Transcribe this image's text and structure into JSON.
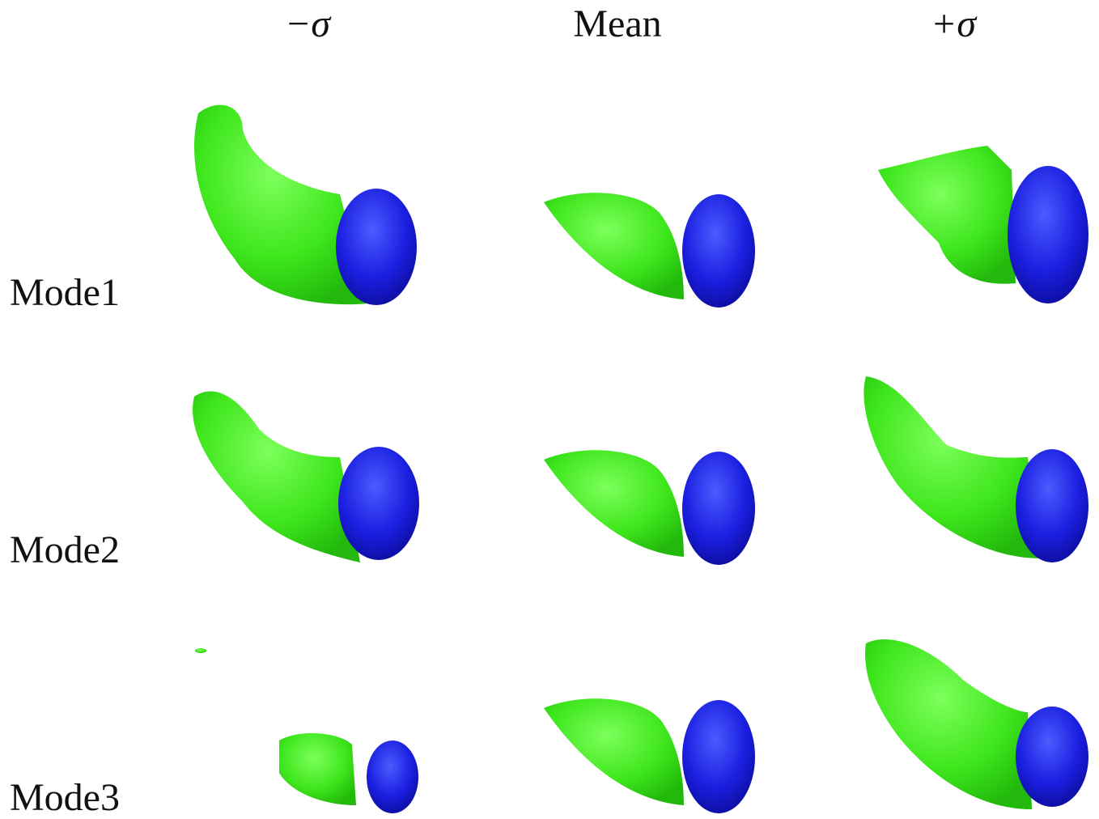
{
  "columns": [
    "−σ",
    "Mean",
    "+σ"
  ],
  "rows": [
    "Mode1",
    "Mode2",
    "Mode3"
  ]
}
